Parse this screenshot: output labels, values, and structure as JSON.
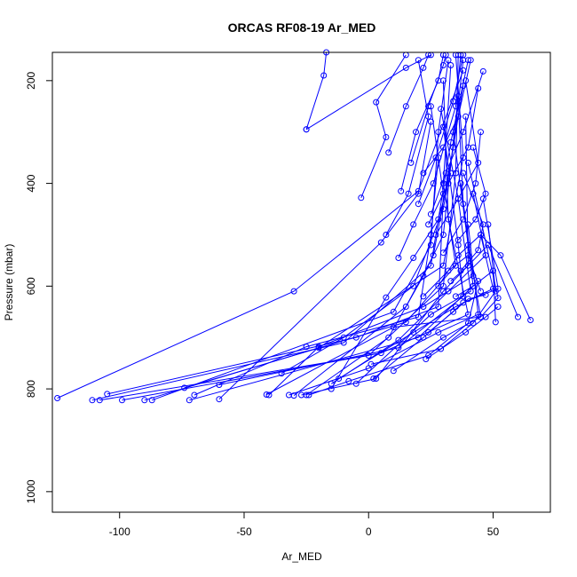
{
  "chart_data": {
    "type": "line",
    "title": "ORCAS RF08-19 Ar_MED",
    "xlabel": "Ar_MED",
    "ylabel": "Pressure (mbar)",
    "xlim": [
      -127,
      73
    ],
    "ylim": [
      1040,
      145
    ],
    "y_reversed": true,
    "x_ticks": [
      -100,
      -50,
      0,
      50
    ],
    "y_ticks": [
      200,
      400,
      600,
      800,
      1000
    ],
    "grid": false,
    "legend": "none",
    "series_color": "#0000ff",
    "marker": "open-circle",
    "series": [
      {
        "values": [
          [
            -125,
            818
          ],
          [
            -30,
            610
          ],
          [
            20,
            415
          ],
          [
            38,
            180
          ]
        ]
      },
      {
        "values": [
          [
            -111,
            822
          ],
          [
            -10,
            710
          ],
          [
            25,
            560
          ],
          [
            33,
            320
          ],
          [
            40,
            160
          ]
        ]
      },
      {
        "values": [
          [
            -108,
            822
          ],
          [
            0,
            735
          ],
          [
            30,
            600
          ],
          [
            35,
            380
          ],
          [
            36,
            150
          ]
        ]
      },
      {
        "values": [
          [
            -105,
            810
          ],
          [
            -5,
            700
          ],
          [
            28,
            640
          ],
          [
            30,
            420
          ],
          [
            25,
            250
          ]
        ]
      },
      {
        "values": [
          [
            -99,
            822
          ],
          [
            5,
            730
          ],
          [
            40,
            655
          ],
          [
            32,
            470
          ],
          [
            30,
            200
          ]
        ]
      },
      {
        "values": [
          [
            -90,
            822
          ],
          [
            -20,
            720
          ],
          [
            30,
            560
          ],
          [
            38,
            350
          ],
          [
            35,
            150
          ]
        ]
      },
      {
        "values": [
          [
            -87,
            822
          ],
          [
            10,
            650
          ],
          [
            25,
            520
          ],
          [
            28,
            300
          ],
          [
            32,
            160
          ]
        ]
      },
      {
        "values": [
          [
            -74,
            798
          ],
          [
            15,
            670
          ],
          [
            35,
            560
          ],
          [
            30,
            400
          ],
          [
            33,
            170
          ]
        ]
      },
      {
        "values": [
          [
            -72,
            822
          ],
          [
            20,
            700
          ],
          [
            42,
            600
          ],
          [
            38,
            440
          ],
          [
            36,
            240
          ]
        ]
      },
      {
        "values": [
          [
            -70,
            812
          ],
          [
            -25,
            718
          ],
          [
            20,
            660
          ],
          [
            25,
            500
          ],
          [
            28,
            350
          ]
        ]
      },
      {
        "values": [
          [
            -60,
            792
          ],
          [
            12,
            720
          ],
          [
            38,
            620
          ],
          [
            36,
            520
          ],
          [
            30,
            290
          ]
        ]
      },
      {
        "values": [
          [
            -60,
            820
          ],
          [
            5,
            515
          ],
          [
            20,
            420
          ],
          [
            25,
            280
          ]
        ]
      },
      {
        "values": [
          [
            -41,
            811
          ],
          [
            10,
            680
          ],
          [
            45,
            660
          ],
          [
            40,
            520
          ],
          [
            34,
            300
          ]
        ]
      },
      {
        "values": [
          [
            -40,
            812
          ],
          [
            -20,
            718
          ],
          [
            22,
            640
          ],
          [
            42,
            580
          ],
          [
            37,
            400
          ]
        ]
      },
      {
        "values": [
          [
            -35,
            770
          ],
          [
            -10,
            700
          ],
          [
            18,
            600
          ],
          [
            30,
            450
          ],
          [
            38,
            210
          ]
        ]
      },
      {
        "values": [
          [
            -32,
            812
          ],
          [
            0,
            760
          ],
          [
            28,
            690
          ],
          [
            44,
            655
          ],
          [
            40,
            480
          ]
        ]
      },
      {
        "values": [
          [
            -30,
            813
          ],
          [
            15,
            640
          ],
          [
            26,
            540
          ],
          [
            34,
            330
          ],
          [
            38,
            160
          ]
        ]
      },
      {
        "values": [
          [
            -27,
            812
          ],
          [
            3,
            780
          ],
          [
            30,
            610
          ],
          [
            40,
            560
          ],
          [
            39,
            270
          ]
        ]
      },
      {
        "values": [
          [
            -25,
            812
          ],
          [
            8,
            700
          ],
          [
            22,
            580
          ],
          [
            30,
            500
          ],
          [
            36,
            230
          ]
        ]
      },
      {
        "values": [
          [
            -24,
            812
          ],
          [
            -8,
            785
          ],
          [
            24,
            735
          ],
          [
            40,
            672
          ],
          [
            44,
            590
          ]
        ]
      },
      {
        "values": [
          [
            -15,
            800
          ],
          [
            7,
            622
          ],
          [
            18,
            545
          ],
          [
            28,
            470
          ],
          [
            33,
            380
          ]
        ]
      },
      {
        "values": [
          [
            -15,
            790
          ],
          [
            12,
            705
          ],
          [
            32,
            610
          ],
          [
            47,
            540
          ],
          [
            42,
            420
          ]
        ]
      },
      {
        "values": [
          [
            -12,
            780
          ],
          [
            18,
            690
          ],
          [
            35,
            640
          ],
          [
            50,
            605
          ],
          [
            45,
            500
          ]
        ]
      },
      {
        "values": [
          [
            -5,
            790
          ],
          [
            25,
            655
          ],
          [
            41,
            610
          ],
          [
            36,
            430
          ],
          [
            29,
            255
          ]
        ]
      },
      {
        "values": [
          [
            1,
            752
          ],
          [
            29,
            722
          ],
          [
            42,
            672
          ],
          [
            51,
            610
          ],
          [
            48,
            480
          ]
        ]
      },
      {
        "values": [
          [
            2,
            780
          ],
          [
            22,
            700
          ],
          [
            38,
            632
          ],
          [
            52,
            605
          ],
          [
            46,
            430
          ]
        ]
      },
      {
        "values": [
          [
            10,
            765
          ],
          [
            30,
            700
          ],
          [
            45,
            660
          ],
          [
            52,
            623
          ],
          [
            40,
            360
          ]
        ]
      },
      {
        "values": [
          [
            -25,
            295
          ],
          [
            -18,
            190
          ],
          [
            -17,
            145
          ]
        ]
      },
      {
        "values": [
          [
            -3,
            428
          ],
          [
            7,
            310
          ],
          [
            3,
            242
          ],
          [
            15,
            150
          ]
        ]
      },
      {
        "values": [
          [
            7,
            500
          ],
          [
            16,
            420
          ],
          [
            24,
            270
          ],
          [
            20,
            160
          ]
        ]
      },
      {
        "values": [
          [
            -25,
            295
          ],
          [
            15,
            175
          ],
          [
            25,
            150
          ]
        ]
      },
      {
        "values": [
          [
            13,
            415
          ],
          [
            19,
            300
          ],
          [
            28,
            200
          ],
          [
            30,
            150
          ]
        ]
      },
      {
        "values": [
          [
            8,
            340
          ],
          [
            15,
            250
          ],
          [
            22,
            175
          ],
          [
            24,
            150
          ]
        ]
      },
      {
        "values": [
          [
            17,
            360
          ],
          [
            24,
            250
          ],
          [
            30,
            170
          ],
          [
            31,
            150
          ]
        ]
      },
      {
        "values": [
          [
            12,
            545
          ],
          [
            18,
            480
          ],
          [
            26,
            400
          ],
          [
            35,
            250
          ],
          [
            37,
            150
          ]
        ]
      },
      {
        "values": [
          [
            20,
            440
          ],
          [
            27,
            350
          ],
          [
            34,
            240
          ],
          [
            38,
            150
          ]
        ]
      },
      {
        "values": [
          [
            22,
            380
          ],
          [
            30,
            330
          ],
          [
            36,
            270
          ],
          [
            41,
            160
          ]
        ]
      },
      {
        "values": [
          [
            25,
            460
          ],
          [
            31,
            380
          ],
          [
            38,
            300
          ],
          [
            46,
            182
          ]
        ]
      },
      {
        "values": [
          [
            24,
            480
          ],
          [
            32,
            400
          ],
          [
            40,
            330
          ],
          [
            44,
            215
          ]
        ]
      },
      {
        "values": [
          [
            27,
            500
          ],
          [
            36,
            430
          ],
          [
            44,
            360
          ],
          [
            39,
            200
          ]
        ]
      },
      {
        "values": [
          [
            30,
            535
          ],
          [
            38,
            470
          ],
          [
            43,
            400
          ],
          [
            45,
            300
          ]
        ]
      },
      {
        "values": [
          [
            28,
            600
          ],
          [
            36,
            540
          ],
          [
            45,
            500
          ],
          [
            53,
            540
          ],
          [
            65,
            666
          ]
        ]
      },
      {
        "values": [
          [
            33,
            590
          ],
          [
            40,
            560
          ],
          [
            48,
            520
          ],
          [
            60,
            660
          ]
        ]
      },
      {
        "values": [
          [
            35,
            620
          ],
          [
            42,
            600
          ],
          [
            50,
            570
          ],
          [
            51,
            670
          ]
        ]
      },
      {
        "values": [
          [
            36,
            510
          ],
          [
            43,
            470
          ],
          [
            47,
            420
          ],
          [
            42,
            330
          ]
        ]
      },
      {
        "values": [
          [
            37,
            570
          ],
          [
            44,
            530
          ],
          [
            46,
            480
          ],
          [
            38,
            380
          ]
        ]
      },
      {
        "values": [
          [
            22,
            620
          ],
          [
            32,
            570
          ],
          [
            40,
            540
          ],
          [
            45,
            610
          ]
        ]
      },
      {
        "values": [
          [
            24,
            690
          ],
          [
            34,
            650
          ],
          [
            40,
            625
          ],
          [
            47,
            617
          ]
        ]
      },
      {
        "values": [
          [
            23,
            742
          ],
          [
            39,
            690
          ],
          [
            47,
            660
          ],
          [
            52,
            640
          ]
        ]
      }
    ]
  }
}
